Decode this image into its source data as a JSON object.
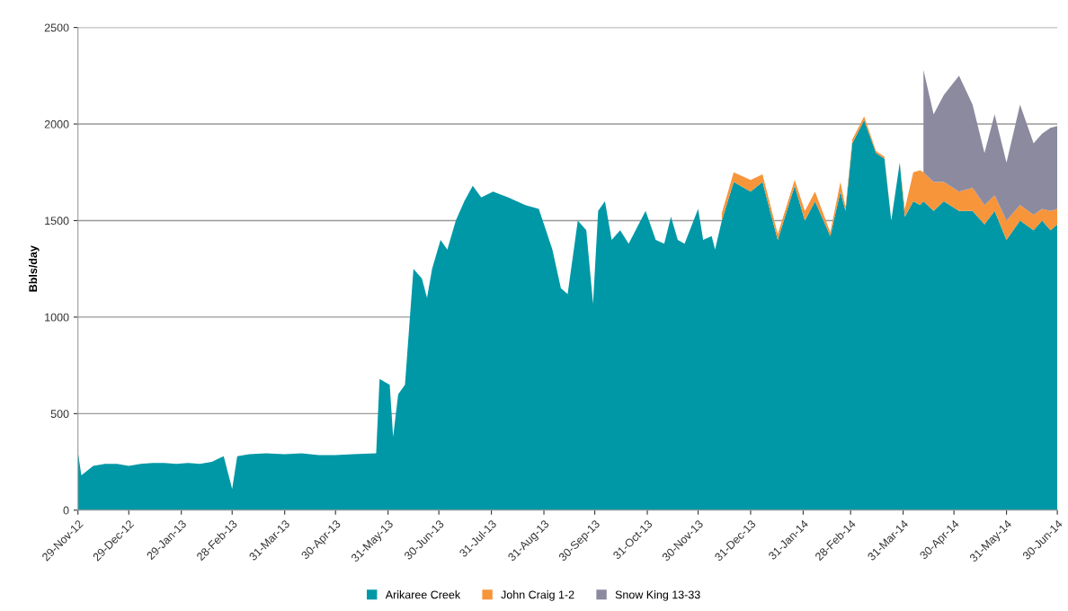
{
  "chart_data": {
    "type": "area",
    "stacked": true,
    "ylabel": "Bbls/day",
    "legend": "bottom",
    "grid": "y",
    "ylim": [
      0,
      2500
    ],
    "yticks": [
      0,
      500,
      1000,
      1500,
      2000,
      2500
    ],
    "xlim": [
      "2012-11-29",
      "2014-06-30"
    ],
    "xticks": [
      {
        "value": "2012-11-29",
        "label": "29-Nov-12"
      },
      {
        "value": "2012-12-29",
        "label": "29-Dec-12"
      },
      {
        "value": "2013-01-29",
        "label": "29-Jan-13"
      },
      {
        "value": "2013-02-28",
        "label": "28-Feb-13"
      },
      {
        "value": "2013-03-31",
        "label": "31-Mar-13"
      },
      {
        "value": "2013-04-30",
        "label": "30-Apr-13"
      },
      {
        "value": "2013-05-31",
        "label": "31-May-13"
      },
      {
        "value": "2013-06-30",
        "label": "30-Jun-13"
      },
      {
        "value": "2013-07-31",
        "label": "31-Jul-13"
      },
      {
        "value": "2013-08-31",
        "label": "31-Aug-13"
      },
      {
        "value": "2013-09-30",
        "label": "30-Sep-13"
      },
      {
        "value": "2013-10-31",
        "label": "31-Oct-13"
      },
      {
        "value": "2013-11-30",
        "label": "30-Nov-13"
      },
      {
        "value": "2013-12-31",
        "label": "31-Dec-13"
      },
      {
        "value": "2014-01-31",
        "label": "31-Jan-14"
      },
      {
        "value": "2014-02-28",
        "label": "28-Feb-14"
      },
      {
        "value": "2014-03-31",
        "label": "31-Mar-14"
      },
      {
        "value": "2014-04-30",
        "label": "30-Apr-14"
      },
      {
        "value": "2014-05-31",
        "label": "31-May-14"
      },
      {
        "value": "2014-06-30",
        "label": "30-Jun-14"
      }
    ],
    "x": [
      "2012-11-29",
      "2012-12-01",
      "2012-12-08",
      "2012-12-15",
      "2012-12-22",
      "2012-12-29",
      "2013-01-05",
      "2013-01-12",
      "2013-01-19",
      "2013-01-26",
      "2013-02-02",
      "2013-02-09",
      "2013-02-16",
      "2013-02-23",
      "2013-02-28",
      "2013-03-03",
      "2013-03-10",
      "2013-03-20",
      "2013-03-31",
      "2013-04-10",
      "2013-04-20",
      "2013-04-30",
      "2013-05-10",
      "2013-05-24",
      "2013-05-26",
      "2013-06-01",
      "2013-06-03",
      "2013-06-06",
      "2013-06-10",
      "2013-06-15",
      "2013-06-20",
      "2013-06-23",
      "2013-06-26",
      "2013-07-01",
      "2013-07-05",
      "2013-07-10",
      "2013-07-15",
      "2013-07-20",
      "2013-07-25",
      "2013-08-01",
      "2013-08-10",
      "2013-08-20",
      "2013-08-28",
      "2013-09-05",
      "2013-09-10",
      "2013-09-14",
      "2013-09-20",
      "2013-09-25",
      "2013-09-29",
      "2013-10-02",
      "2013-10-06",
      "2013-10-10",
      "2013-10-15",
      "2013-10-20",
      "2013-10-30",
      "2013-11-05",
      "2013-11-10",
      "2013-11-14",
      "2013-11-18",
      "2013-11-22",
      "2013-11-30",
      "2013-12-03",
      "2013-12-08",
      "2013-12-10",
      "2013-12-14",
      "2013-12-21",
      "2013-12-31",
      "2014-01-07",
      "2014-01-16",
      "2014-01-26",
      "2014-02-01",
      "2014-02-07",
      "2014-02-16",
      "2014-02-22",
      "2014-02-25",
      "2014-03-01",
      "2014-03-08",
      "2014-03-15",
      "2014-03-20",
      "2014-03-24",
      "2014-03-29",
      "2014-04-01",
      "2014-04-06",
      "2014-04-10",
      "2014-04-12",
      "2014-04-18",
      "2014-04-24",
      "2014-05-03",
      "2014-05-11",
      "2014-05-18",
      "2014-05-24",
      "2014-05-31",
      "2014-06-08",
      "2014-06-16",
      "2014-06-21",
      "2014-06-26",
      "2014-06-30"
    ],
    "series": [
      {
        "name": "Arikaree Creek",
        "color": "#0098a6",
        "values": [
          300,
          180,
          230,
          240,
          240,
          230,
          240,
          245,
          245,
          240,
          245,
          240,
          250,
          280,
          110,
          280,
          290,
          295,
          290,
          295,
          285,
          285,
          290,
          295,
          680,
          650,
          380,
          600,
          650,
          1250,
          1200,
          1100,
          1250,
          1400,
          1350,
          1500,
          1600,
          1680,
          1620,
          1650,
          1620,
          1580,
          1560,
          1350,
          1150,
          1120,
          1500,
          1450,
          1070,
          1550,
          1600,
          1400,
          1450,
          1380,
          1550,
          1400,
          1380,
          1520,
          1400,
          1380,
          1560,
          1400,
          1420,
          1350,
          1500,
          1700,
          1650,
          1700,
          1400,
          1680,
          1500,
          1600,
          1420,
          1650,
          1550,
          1900,
          2020,
          1850,
          1820,
          1500,
          1800,
          1520,
          1600,
          1580,
          1600,
          1550,
          1600,
          1550,
          1550,
          1480,
          1550,
          1400,
          1500,
          1450,
          1500,
          1450,
          1480
        ]
      },
      {
        "name": "John Craig 1-2",
        "color": "#f7953b",
        "values": [
          null,
          null,
          null,
          null,
          null,
          null,
          null,
          null,
          null,
          null,
          null,
          null,
          null,
          null,
          null,
          null,
          null,
          null,
          null,
          null,
          null,
          null,
          null,
          null,
          null,
          null,
          null,
          null,
          null,
          null,
          null,
          null,
          null,
          null,
          null,
          null,
          null,
          null,
          null,
          null,
          null,
          null,
          null,
          null,
          null,
          null,
          null,
          null,
          null,
          null,
          null,
          null,
          null,
          null,
          null,
          null,
          null,
          null,
          null,
          null,
          null,
          null,
          null,
          null,
          40,
          50,
          60,
          40,
          30,
          30,
          50,
          50,
          20,
          50,
          20,
          20,
          20,
          10,
          10,
          0,
          0,
          40,
          150,
          180,
          150,
          150,
          100,
          100,
          120,
          100,
          80,
          100,
          80,
          80,
          60,
          100,
          80
        ]
      },
      {
        "name": "Snow King 13-33",
        "color": "#8c8a9e",
        "values": [
          null,
          null,
          null,
          null,
          null,
          null,
          null,
          null,
          null,
          null,
          null,
          null,
          null,
          null,
          null,
          null,
          null,
          null,
          null,
          null,
          null,
          null,
          null,
          null,
          null,
          null,
          null,
          null,
          null,
          null,
          null,
          null,
          null,
          null,
          null,
          null,
          null,
          null,
          null,
          null,
          null,
          null,
          null,
          null,
          null,
          null,
          null,
          null,
          null,
          null,
          null,
          null,
          null,
          null,
          null,
          null,
          null,
          null,
          null,
          null,
          null,
          null,
          null,
          null,
          null,
          null,
          null,
          null,
          null,
          null,
          null,
          null,
          null,
          null,
          null,
          null,
          null,
          null,
          null,
          null,
          null,
          null,
          null,
          null,
          530,
          350,
          450,
          600,
          430,
          270,
          420,
          300,
          520,
          370,
          390,
          430,
          430
        ]
      }
    ]
  }
}
